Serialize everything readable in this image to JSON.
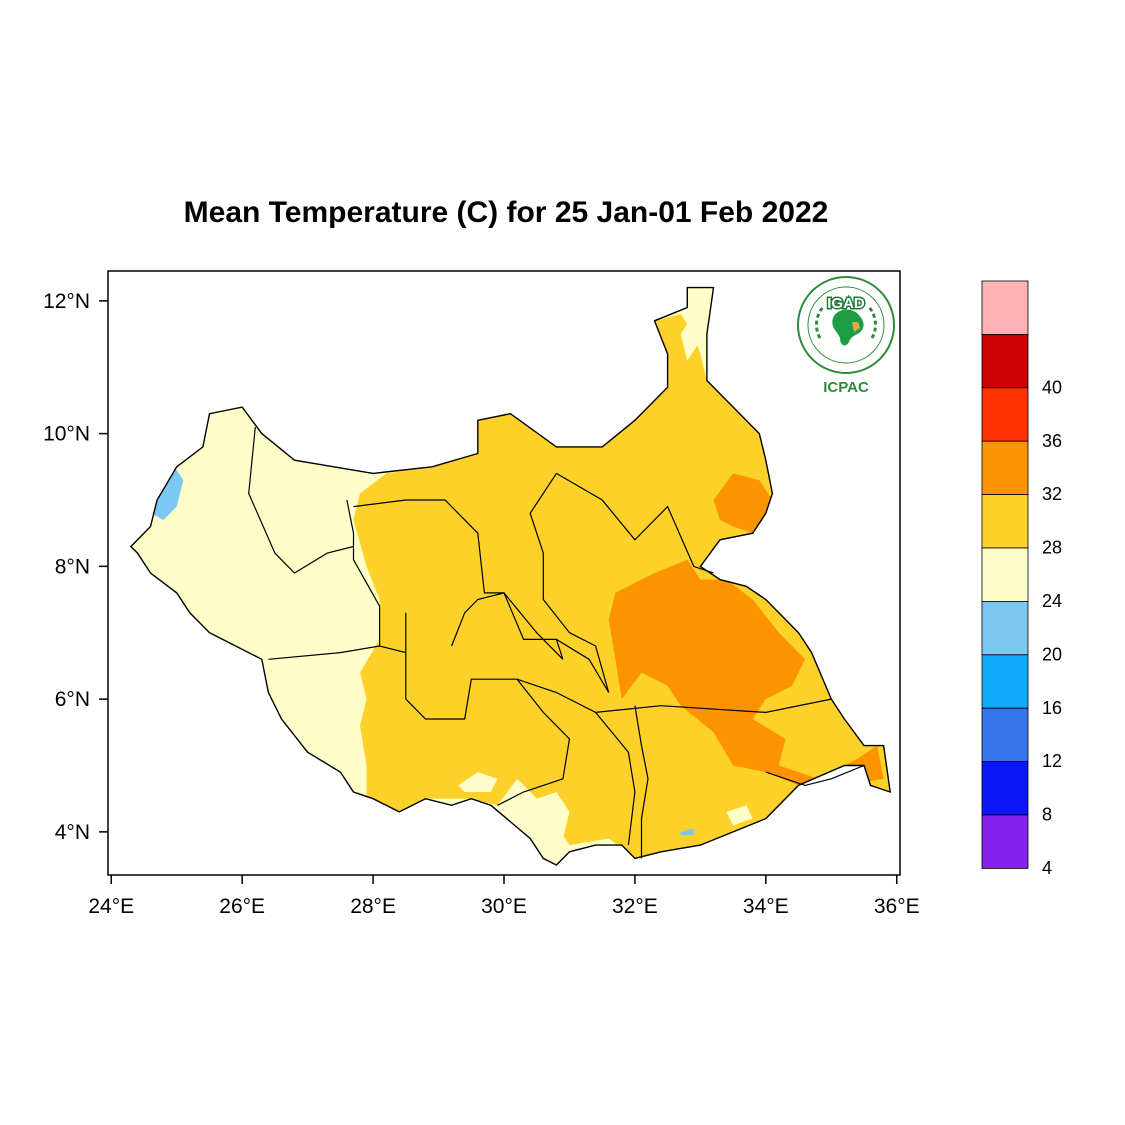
{
  "map": {
    "title": "Mean Temperature (C) for 25 Jan-01 Feb 2022",
    "region": "South Sudan",
    "lon_range": [
      23.95,
      36.05
    ],
    "lat_range": [
      3.35,
      12.45
    ],
    "lon_ticks": [
      {
        "value": 24,
        "label": "24°E"
      },
      {
        "value": 26,
        "label": "26°E"
      },
      {
        "value": 28,
        "label": "28°E"
      },
      {
        "value": 30,
        "label": "30°E"
      },
      {
        "value": 32,
        "label": "32°E"
      },
      {
        "value": 34,
        "label": "34°E"
      },
      {
        "value": 36,
        "label": "36°E"
      }
    ],
    "lat_ticks": [
      {
        "value": 4,
        "label": "4°N"
      },
      {
        "value": 6,
        "label": "6°N"
      },
      {
        "value": 8,
        "label": "8°N"
      },
      {
        "value": 10,
        "label": "10°N"
      },
      {
        "value": 12,
        "label": "12°N"
      }
    ],
    "colors": {
      "c20_24": "#fffec8",
      "c24_28": "#fcd12a",
      "c28_32": "#fc9402",
      "c16_20": "#7bc8f2"
    },
    "outline": [
      [
        24.3,
        8.3
      ],
      [
        24.6,
        8.6
      ],
      [
        24.7,
        9.0
      ],
      [
        25.0,
        9.5
      ],
      [
        25.4,
        9.8
      ],
      [
        25.5,
        10.3
      ],
      [
        26.0,
        10.4
      ],
      [
        26.3,
        10.0
      ],
      [
        26.8,
        9.6
      ],
      [
        28.0,
        9.4
      ],
      [
        28.9,
        9.5
      ],
      [
        29.6,
        9.7
      ],
      [
        29.6,
        10.2
      ],
      [
        30.1,
        10.3
      ],
      [
        30.8,
        9.8
      ],
      [
        31.5,
        9.8
      ],
      [
        32.0,
        10.2
      ],
      [
        32.5,
        10.7
      ],
      [
        32.5,
        11.2
      ],
      [
        32.3,
        11.7
      ],
      [
        32.8,
        11.9
      ],
      [
        32.8,
        12.2
      ],
      [
        33.2,
        12.2
      ],
      [
        33.1,
        11.5
      ],
      [
        33.1,
        10.8
      ],
      [
        33.4,
        10.5
      ],
      [
        33.9,
        10.0
      ],
      [
        34.0,
        9.6
      ],
      [
        34.1,
        9.1
      ],
      [
        34.0,
        8.8
      ],
      [
        33.8,
        8.5
      ],
      [
        33.3,
        8.4
      ],
      [
        33.0,
        8.0
      ],
      [
        33.3,
        7.8
      ],
      [
        33.7,
        7.7
      ],
      [
        34.0,
        7.5
      ],
      [
        34.5,
        7.0
      ],
      [
        34.7,
        6.7
      ],
      [
        35.0,
        6.0
      ],
      [
        35.2,
        5.7
      ],
      [
        35.5,
        5.3
      ],
      [
        35.8,
        5.3
      ],
      [
        35.9,
        4.6
      ],
      [
        35.6,
        4.7
      ],
      [
        35.5,
        5.0
      ],
      [
        35.2,
        5.0
      ],
      [
        34.5,
        4.7
      ],
      [
        34.0,
        4.2
      ],
      [
        33.5,
        4.0
      ],
      [
        33.0,
        3.8
      ],
      [
        32.4,
        3.7
      ],
      [
        32.0,
        3.6
      ],
      [
        31.8,
        3.8
      ],
      [
        31.4,
        3.8
      ],
      [
        31.0,
        3.7
      ],
      [
        30.8,
        3.5
      ],
      [
        30.6,
        3.6
      ],
      [
        30.4,
        3.9
      ],
      [
        29.8,
        4.4
      ],
      [
        29.5,
        4.5
      ],
      [
        29.2,
        4.4
      ],
      [
        28.8,
        4.5
      ],
      [
        28.4,
        4.3
      ],
      [
        28.0,
        4.5
      ],
      [
        27.7,
        4.6
      ],
      [
        27.5,
        4.9
      ],
      [
        27.0,
        5.2
      ],
      [
        26.6,
        5.7
      ],
      [
        26.4,
        6.1
      ],
      [
        26.3,
        6.6
      ],
      [
        25.9,
        6.8
      ],
      [
        25.5,
        7.0
      ],
      [
        25.2,
        7.3
      ],
      [
        25.0,
        7.6
      ],
      [
        24.6,
        7.9
      ],
      [
        24.4,
        8.2
      ],
      [
        24.3,
        8.3
      ]
    ],
    "zones": [
      {
        "level": "c24_28",
        "poly": [
          [
            28.2,
            9.4
          ],
          [
            28.9,
            9.5
          ],
          [
            29.6,
            9.7
          ],
          [
            29.6,
            10.2
          ],
          [
            30.1,
            10.3
          ],
          [
            30.8,
            9.8
          ],
          [
            31.5,
            9.8
          ],
          [
            32.0,
            10.2
          ],
          [
            32.5,
            10.7
          ],
          [
            32.5,
            11.2
          ],
          [
            32.3,
            11.7
          ],
          [
            32.7,
            11.8
          ],
          [
            32.9,
            11.5
          ],
          [
            33.0,
            11.2
          ],
          [
            33.1,
            10.8
          ],
          [
            33.4,
            10.5
          ],
          [
            33.9,
            10.0
          ],
          [
            34.0,
            9.6
          ],
          [
            34.1,
            9.1
          ],
          [
            34.0,
            8.8
          ],
          [
            33.8,
            8.5
          ],
          [
            33.3,
            8.4
          ],
          [
            33.0,
            8.0
          ],
          [
            33.3,
            7.8
          ],
          [
            33.7,
            7.7
          ],
          [
            34.0,
            7.5
          ],
          [
            34.5,
            7.0
          ],
          [
            34.7,
            6.7
          ],
          [
            35.0,
            6.0
          ],
          [
            35.2,
            5.7
          ],
          [
            35.5,
            5.3
          ],
          [
            35.8,
            5.3
          ],
          [
            35.9,
            4.6
          ],
          [
            35.6,
            4.7
          ],
          [
            35.2,
            5.0
          ],
          [
            34.5,
            4.7
          ],
          [
            34.0,
            4.2
          ],
          [
            33.5,
            4.0
          ],
          [
            33.0,
            3.8
          ],
          [
            32.0,
            3.6
          ],
          [
            31.6,
            3.9
          ],
          [
            31.0,
            3.8
          ],
          [
            30.6,
            4.4
          ],
          [
            30.2,
            4.8
          ],
          [
            29.9,
            4.4
          ],
          [
            29.5,
            4.5
          ],
          [
            28.8,
            4.5
          ],
          [
            28.4,
            4.3
          ],
          [
            27.9,
            4.5
          ],
          [
            27.9,
            5.0
          ],
          [
            27.8,
            5.6
          ],
          [
            27.9,
            6.0
          ],
          [
            27.8,
            6.4
          ],
          [
            28.1,
            6.9
          ],
          [
            28.1,
            7.5
          ],
          [
            27.9,
            8.0
          ],
          [
            27.7,
            8.7
          ],
          [
            27.8,
            9.1
          ],
          [
            28.2,
            9.4
          ]
        ]
      },
      {
        "level": "c28_32",
        "poly": [
          [
            31.7,
            7.6
          ],
          [
            32.3,
            7.9
          ],
          [
            32.8,
            8.1
          ],
          [
            33.0,
            7.8
          ],
          [
            33.4,
            7.8
          ],
          [
            33.8,
            7.5
          ],
          [
            34.2,
            7.0
          ],
          [
            34.6,
            6.6
          ],
          [
            34.4,
            6.2
          ],
          [
            34.0,
            6.0
          ],
          [
            33.8,
            5.7
          ],
          [
            34.3,
            5.4
          ],
          [
            34.2,
            5.0
          ],
          [
            34.8,
            4.8
          ],
          [
            35.4,
            5.1
          ],
          [
            35.7,
            5.3
          ],
          [
            35.8,
            4.8
          ],
          [
            35.2,
            4.7
          ],
          [
            34.5,
            4.7
          ],
          [
            34.0,
            4.9
          ],
          [
            33.5,
            5.0
          ],
          [
            33.2,
            5.5
          ],
          [
            32.7,
            5.9
          ],
          [
            32.5,
            6.2
          ],
          [
            32.1,
            6.4
          ],
          [
            31.8,
            6.0
          ],
          [
            31.7,
            6.6
          ],
          [
            31.6,
            7.2
          ],
          [
            31.7,
            7.6
          ]
        ]
      },
      {
        "level": "c28_32",
        "poly": [
          [
            33.2,
            9.0
          ],
          [
            33.5,
            9.4
          ],
          [
            33.9,
            9.3
          ],
          [
            34.1,
            9.0
          ],
          [
            34.1,
            8.6
          ],
          [
            33.8,
            8.5
          ],
          [
            33.5,
            8.6
          ],
          [
            33.3,
            8.7
          ],
          [
            33.2,
            9.0
          ]
        ]
      },
      {
        "level": "c20_24",
        "poly": [
          [
            32.9,
            11.8
          ],
          [
            32.7,
            11.5
          ],
          [
            32.8,
            11.1
          ],
          [
            33.0,
            11.4
          ],
          [
            33.0,
            11.7
          ],
          [
            32.9,
            11.8
          ]
        ]
      },
      {
        "level": "c20_24",
        "poly": [
          [
            30.3,
            4.1
          ],
          [
            30.5,
            4.5
          ],
          [
            30.8,
            4.6
          ],
          [
            31.0,
            4.3
          ],
          [
            30.9,
            3.9
          ],
          [
            30.6,
            3.8
          ],
          [
            30.3,
            4.1
          ]
        ]
      },
      {
        "level": "c20_24",
        "poly": [
          [
            29.3,
            4.7
          ],
          [
            29.6,
            4.9
          ],
          [
            29.9,
            4.8
          ],
          [
            29.8,
            4.6
          ],
          [
            29.4,
            4.6
          ],
          [
            29.3,
            4.7
          ]
        ]
      },
      {
        "level": "c20_24",
        "poly": [
          [
            33.4,
            4.3
          ],
          [
            33.7,
            4.4
          ],
          [
            33.8,
            4.2
          ],
          [
            33.5,
            4.1
          ],
          [
            33.4,
            4.3
          ]
        ]
      },
      {
        "level": "c16_20",
        "poly": [
          [
            24.6,
            8.8
          ],
          [
            24.8,
            8.7
          ],
          [
            25.0,
            8.9
          ],
          [
            25.1,
            9.3
          ],
          [
            24.9,
            9.6
          ],
          [
            24.7,
            9.3
          ],
          [
            24.6,
            8.8
          ]
        ]
      },
      {
        "level": "c16_20",
        "poly": [
          [
            32.7,
            4.0
          ],
          [
            32.9,
            4.05
          ],
          [
            32.9,
            3.95
          ],
          [
            32.7,
            3.95
          ],
          [
            32.7,
            4.0
          ]
        ]
      }
    ],
    "boundaries": [
      [
        [
          26.2,
          10.1
        ],
        [
          26.1,
          9.1
        ],
        [
          26.5,
          8.2
        ],
        [
          26.8,
          7.9
        ],
        [
          27.3,
          8.2
        ],
        [
          27.7,
          8.3
        ]
      ],
      [
        [
          27.6,
          9.0
        ],
        [
          27.7,
          8.5
        ],
        [
          27.7,
          8.1
        ],
        [
          28.1,
          7.4
        ],
        [
          28.1,
          6.8
        ]
      ],
      [
        [
          26.4,
          6.6
        ],
        [
          27.5,
          6.7
        ],
        [
          28.1,
          6.8
        ],
        [
          28.5,
          6.7
        ],
        [
          28.5,
          7.3
        ],
        [
          28.5,
          6.0
        ]
      ],
      [
        [
          27.7,
          8.9
        ],
        [
          28.5,
          9.0
        ],
        [
          29.1,
          9.0
        ],
        [
          29.6,
          8.5
        ],
        [
          29.7,
          7.6
        ],
        [
          30.0,
          7.6
        ],
        [
          30.3,
          6.9
        ],
        [
          30.8,
          6.9
        ],
        [
          31.3,
          6.6
        ],
        [
          31.6,
          6.1
        ]
      ],
      [
        [
          28.5,
          6.0
        ],
        [
          28.8,
          5.7
        ],
        [
          29.4,
          5.7
        ],
        [
          29.5,
          6.3
        ],
        [
          30.2,
          6.3
        ],
        [
          30.8,
          6.1
        ],
        [
          31.4,
          5.8
        ],
        [
          32.4,
          5.9
        ],
        [
          34.0,
          5.8
        ],
        [
          35.0,
          6.0
        ]
      ],
      [
        [
          29.2,
          6.8
        ],
        [
          29.4,
          7.3
        ],
        [
          29.6,
          7.5
        ],
        [
          30.0,
          7.6
        ],
        [
          30.5,
          7.0
        ],
        [
          30.9,
          6.6
        ],
        [
          30.8,
          6.9
        ]
      ],
      [
        [
          30.8,
          9.4
        ],
        [
          31.5,
          9.0
        ],
        [
          32.0,
          8.4
        ],
        [
          32.5,
          8.9
        ],
        [
          32.9,
          8.0
        ],
        [
          33.2,
          7.9
        ]
      ],
      [
        [
          30.8,
          9.4
        ],
        [
          30.4,
          8.8
        ],
        [
          30.6,
          8.2
        ],
        [
          30.6,
          7.5
        ],
        [
          31.0,
          7.0
        ],
        [
          31.4,
          6.8
        ],
        [
          31.6,
          6.1
        ]
      ],
      [
        [
          30.2,
          6.3
        ],
        [
          30.6,
          5.8
        ],
        [
          31.0,
          5.4
        ],
        [
          30.9,
          4.8
        ],
        [
          30.3,
          4.6
        ],
        [
          29.9,
          4.4
        ]
      ],
      [
        [
          32.0,
          5.9
        ],
        [
          32.1,
          5.3
        ],
        [
          32.2,
          4.8
        ],
        [
          32.1,
          4.2
        ],
        [
          32.1,
          3.6
        ]
      ],
      [
        [
          31.4,
          5.8
        ],
        [
          31.9,
          5.2
        ],
        [
          32.0,
          4.6
        ],
        [
          31.9,
          3.8
        ]
      ],
      [
        [
          34.0,
          4.9
        ],
        [
          34.6,
          4.7
        ],
        [
          35.0,
          4.8
        ],
        [
          35.5,
          5.0
        ]
      ]
    ]
  },
  "colorbar": {
    "levels": [
      {
        "color": "#fdb3b3",
        "label": ""
      },
      {
        "color": "#cc0000",
        "label": "40"
      },
      {
        "color": "#ff3300",
        "label": "36"
      },
      {
        "color": "#fc9402",
        "label": "32"
      },
      {
        "color": "#fcd12a",
        "label": "28"
      },
      {
        "color": "#fffec8",
        "label": "24"
      },
      {
        "color": "#7bc8f2",
        "label": "20"
      },
      {
        "color": "#10acfa",
        "label": "16"
      },
      {
        "color": "#3676ea",
        "label": "12"
      },
      {
        "color": "#0b16f5",
        "label": "8"
      },
      {
        "color": "#8421f0",
        "label": "4"
      }
    ]
  },
  "logo": {
    "badge": "IGAD",
    "caption": "ICPAC"
  }
}
